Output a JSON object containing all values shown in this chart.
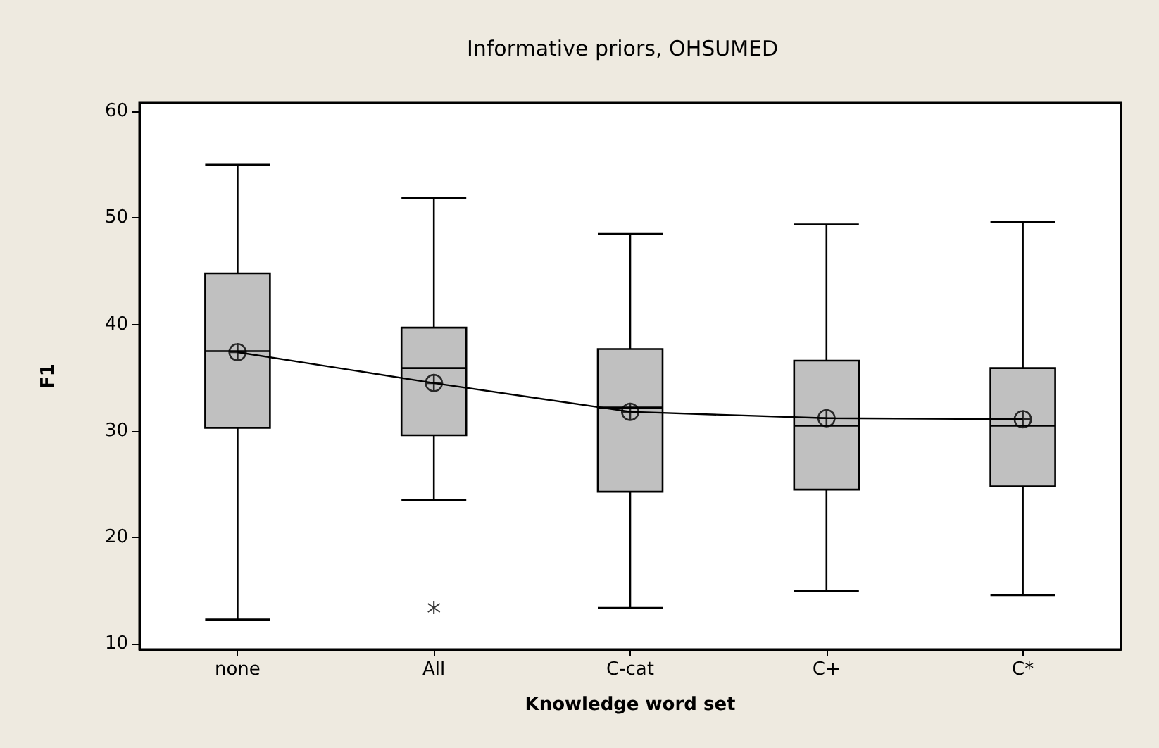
{
  "chart_data": {
    "type": "box",
    "title": "Informative priors, OHSUMED",
    "xlabel": "Knowledge word set",
    "ylabel": "F1",
    "categories": [
      "none",
      "All",
      "C-cat",
      "C+",
      "C*"
    ],
    "series": [
      {
        "color": "#c0c0c0",
        "boxes": [
          {
            "low": 12.3,
            "q1": 30.3,
            "median": 37.5,
            "q3": 44.8,
            "high": 55.0,
            "mean": 37.4
          },
          {
            "low": 23.5,
            "q1": 29.6,
            "median": 35.9,
            "q3": 39.7,
            "high": 51.9,
            "mean": 34.5,
            "outliers": [
              13.4
            ]
          },
          {
            "low": 13.4,
            "q1": 24.3,
            "median": 32.2,
            "q3": 37.7,
            "high": 48.5,
            "mean": 31.8
          },
          {
            "low": 15.0,
            "q1": 24.5,
            "median": 30.5,
            "q3": 36.6,
            "high": 49.4,
            "mean": 31.2
          },
          {
            "low": 14.6,
            "q1": 24.8,
            "median": 30.5,
            "q3": 35.9,
            "high": 49.6,
            "mean": 31.1
          }
        ]
      },
      {
        "type": "line",
        "color": "#000000",
        "values": [
          37.4,
          34.5,
          31.8,
          31.2,
          31.1
        ]
      }
    ],
    "ylim": [
      9.5,
      60.8
    ],
    "yticks": [
      10,
      20,
      30,
      40,
      50,
      60
    ],
    "grid": false
  }
}
